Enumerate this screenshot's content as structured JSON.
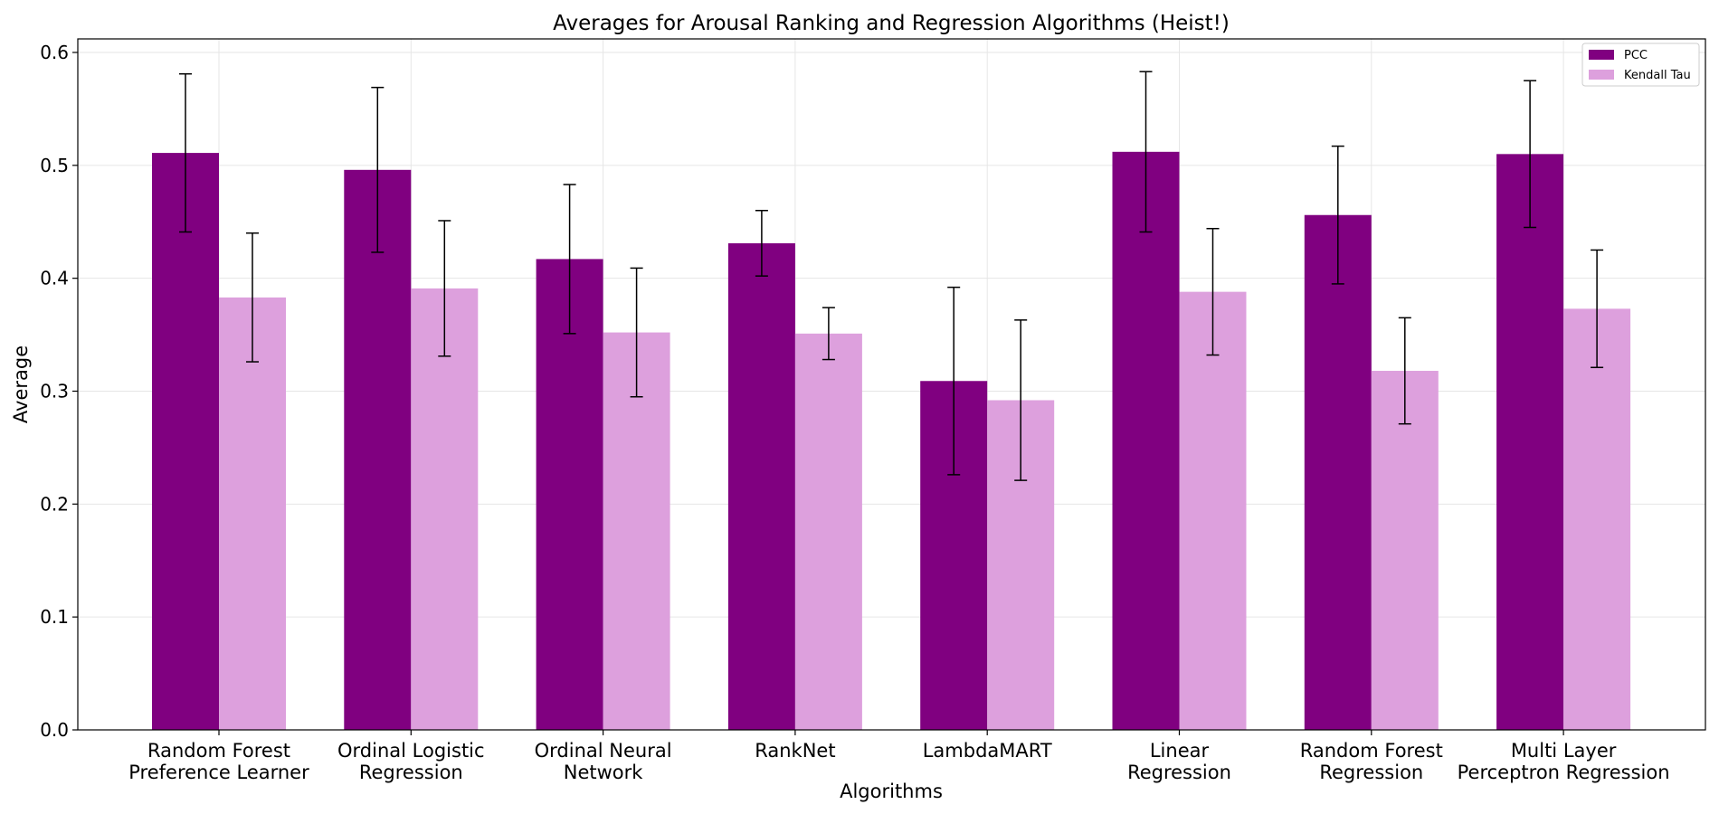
{
  "chart_data": {
    "type": "bar",
    "title": "Averages for Arousal Ranking and Regression Algorithms (Heist!)",
    "xlabel": "Algorithms",
    "ylabel": "Average",
    "ylim": [
      0,
      0.612
    ],
    "yticks": [
      "0.0",
      "0.1",
      "0.2",
      "0.3",
      "0.4",
      "0.5",
      "0.6"
    ],
    "grid": true,
    "legend_position": "top-right",
    "categories": [
      [
        "Random Forest",
        "Preference Learner"
      ],
      [
        "Ordinal Logistic",
        "Regression"
      ],
      [
        "Ordinal Neural",
        "Network"
      ],
      [
        "RankNet"
      ],
      [
        "LambdaMART"
      ],
      [
        "Linear",
        "Regression"
      ],
      [
        "Random Forest",
        "Regression"
      ],
      [
        "Multi Layer",
        "Perceptron Regression"
      ]
    ],
    "series": [
      {
        "name": "PCC",
        "color": "#800080",
        "values": [
          0.511,
          0.496,
          0.417,
          0.431,
          0.309,
          0.512,
          0.456,
          0.51
        ],
        "errors": [
          0.07,
          0.073,
          0.066,
          0.029,
          0.083,
          0.071,
          0.061,
          0.065
        ]
      },
      {
        "name": "Kendall Tau",
        "color": "#dda0dd",
        "values": [
          0.383,
          0.391,
          0.352,
          0.351,
          0.292,
          0.388,
          0.318,
          0.373
        ],
        "errors": [
          0.057,
          0.06,
          0.057,
          0.023,
          0.071,
          0.056,
          0.047,
          0.052
        ]
      }
    ]
  }
}
